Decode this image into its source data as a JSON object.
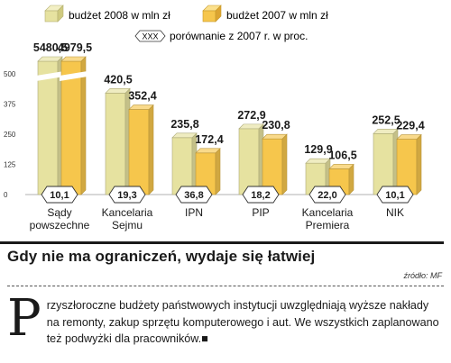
{
  "legend": {
    "series1": "budżet 2008 w mln zł",
    "series2": "budżet 2007 w mln zł",
    "comparison_badge": "XXX",
    "comparison_text": "porównanie z 2007 r. w proc."
  },
  "chart_data": {
    "type": "bar",
    "categories": [
      [
        "Sądy",
        "powszechne"
      ],
      [
        "Kancelaria",
        "Sejmu"
      ],
      [
        "IPN"
      ],
      [
        "PIP"
      ],
      [
        "Kancelaria",
        "Premiera"
      ],
      [
        "NIK"
      ]
    ],
    "series": [
      {
        "name": "budżet 2008 w mln zł",
        "values": [
          5480.5,
          420.5,
          235.8,
          272.9,
          129.9,
          252.5
        ],
        "labels": [
          "5480,5",
          "420,5",
          "235,8",
          "272,9",
          "129,9",
          "252,5"
        ],
        "color": "#e6e2a0"
      },
      {
        "name": "budżet 2007 w mln zł",
        "values": [
          4979.5,
          352.4,
          172.4,
          230.8,
          106.5,
          229.4
        ],
        "labels": [
          "4979,5",
          "352,4",
          "172,4",
          "230,8",
          "106,5",
          "229,4"
        ],
        "color": "#f6c64c"
      }
    ],
    "change_pct": [
      "10,1",
      "19,3",
      "36,8",
      "18,2",
      "22,0",
      "10,1"
    ],
    "yticks": [
      "0",
      "125",
      "250",
      "375",
      "500"
    ],
    "ylim": [
      0,
      500
    ],
    "axis_break": true,
    "grid": false,
    "legend_position": "top"
  },
  "headline": "Gdy nie ma ograniczeń, wydaje się łatwiej",
  "source": "źródło: MF",
  "article": {
    "dropcap": "P",
    "text": "rzyszłoroczne budżety państwowych instytucji uwzględniają wyższe nakłady na remonty, zakup sprzętu komputerowego i aut. We wszystkich zaplanowano też podwyżki dla pracowników.■"
  }
}
